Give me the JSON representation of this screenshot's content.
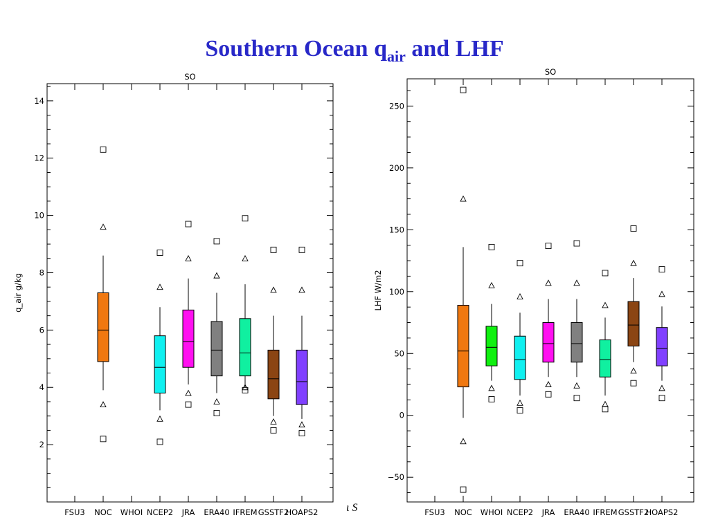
{
  "title": {
    "main": "Southern Ocean q",
    "sub": "air",
    "tail": " and LHF"
  },
  "stray_text": "ι S",
  "chart_data": [
    {
      "type": "box",
      "title": "SO",
      "xlabel": "",
      "ylabel": "q_air g/kg",
      "ylim": [
        0,
        14.6
      ],
      "yticks": [
        2,
        4,
        6,
        8,
        10,
        12,
        14
      ],
      "categories": [
        "FSU3",
        "NOC",
        "WHOI",
        "NCEP2",
        "JRA",
        "ERA40",
        "IFREM",
        "GSSTF2",
        "HOAPS2"
      ],
      "boxes": [
        {
          "category": "NOC",
          "color": "#f07810",
          "q1": 4.9,
          "median": 6.0,
          "q3": 7.3,
          "whisker_low": 3.9,
          "whisker_high": 8.6,
          "tri_low": 3.4,
          "tri_high": 9.6,
          "sq_low": 2.2,
          "sq_high": 12.3
        },
        {
          "category": "NCEP2",
          "color": "#10f0f0",
          "q1": 3.8,
          "median": 4.7,
          "q3": 5.8,
          "whisker_low": 3.2,
          "whisker_high": 6.8,
          "tri_low": 2.9,
          "tri_high": 7.5,
          "sq_low": 2.1,
          "sq_high": 8.7
        },
        {
          "category": "JRA",
          "color": "#ff10f0",
          "q1": 4.7,
          "median": 5.6,
          "q3": 6.7,
          "whisker_low": 4.1,
          "whisker_high": 7.8,
          "tri_low": 3.8,
          "tri_high": 8.5,
          "sq_low": 3.4,
          "sq_high": 9.7
        },
        {
          "category": "ERA40",
          "color": "#808080",
          "q1": 4.4,
          "median": 5.3,
          "q3": 6.3,
          "whisker_low": 3.8,
          "whisker_high": 7.3,
          "tri_low": 3.5,
          "tri_high": 7.9,
          "sq_low": 3.1,
          "sq_high": 9.1
        },
        {
          "category": "IFREM",
          "color": "#10f0a0",
          "q1": 4.4,
          "median": 5.2,
          "q3": 6.4,
          "whisker_low": 4.0,
          "whisker_high": 7.6,
          "tri_low": 4.0,
          "tri_high": 8.5,
          "sq_low": 3.9,
          "sq_high": 9.9
        },
        {
          "category": "GSSTF2",
          "color": "#8b4513",
          "q1": 3.6,
          "median": 4.3,
          "q3": 5.3,
          "whisker_low": 3.0,
          "whisker_high": 6.5,
          "tri_low": 2.8,
          "tri_high": 7.4,
          "sq_low": 2.5,
          "sq_high": 8.8
        },
        {
          "category": "HOAPS2",
          "color": "#8040ff",
          "q1": 3.4,
          "median": 4.2,
          "q3": 5.3,
          "whisker_low": 2.9,
          "whisker_high": 6.5,
          "tri_low": 2.7,
          "tri_high": 7.4,
          "sq_low": 2.4,
          "sq_high": 8.8
        }
      ]
    },
    {
      "type": "box",
      "title": "SO",
      "xlabel": "",
      "ylabel": "LHF W/m2",
      "ylim": [
        -70,
        272
      ],
      "yticks": [
        -50,
        0,
        50,
        100,
        150,
        200,
        250
      ],
      "categories": [
        "FSU3",
        "NOC",
        "WHOI",
        "NCEP2",
        "JRA",
        "ERA40",
        "IFREM",
        "GSSTF2",
        "HOAPS2"
      ],
      "boxes": [
        {
          "category": "NOC",
          "color": "#f07810",
          "q1": 23,
          "median": 52,
          "q3": 89,
          "whisker_low": -2,
          "whisker_high": 136,
          "tri_low": -21,
          "tri_high": 175,
          "sq_low": -60,
          "sq_high": 263
        },
        {
          "category": "WHOI",
          "color": "#10f010",
          "q1": 40,
          "median": 55,
          "q3": 72,
          "whisker_low": 28,
          "whisker_high": 90,
          "tri_low": 22,
          "tri_high": 105,
          "sq_low": 13,
          "sq_high": 136
        },
        {
          "category": "NCEP2",
          "color": "#10f0f0",
          "q1": 29,
          "median": 45,
          "q3": 64,
          "whisker_low": 16,
          "whisker_high": 83,
          "tri_low": 10,
          "tri_high": 96,
          "sq_low": 4,
          "sq_high": 123
        },
        {
          "category": "JRA",
          "color": "#ff10f0",
          "q1": 43,
          "median": 58,
          "q3": 75,
          "whisker_low": 31,
          "whisker_high": 94,
          "tri_low": 25,
          "tri_high": 107,
          "sq_low": 17,
          "sq_high": 137
        },
        {
          "category": "ERA40",
          "color": "#808080",
          "q1": 43,
          "median": 58,
          "q3": 75,
          "whisker_low": 31,
          "whisker_high": 94,
          "tri_low": 24,
          "tri_high": 107,
          "sq_low": 14,
          "sq_high": 139
        },
        {
          "category": "IFREM",
          "color": "#10f0a0",
          "q1": 31,
          "median": 45,
          "q3": 61,
          "whisker_low": 16,
          "whisker_high": 79,
          "tri_low": 9,
          "tri_high": 89,
          "sq_low": 5,
          "sq_high": 115
        },
        {
          "category": "GSSTF2",
          "color": "#8b4513",
          "q1": 56,
          "median": 73,
          "q3": 92,
          "whisker_low": 43,
          "whisker_high": 111,
          "tri_low": 36,
          "tri_high": 123,
          "sq_low": 26,
          "sq_high": 151
        },
        {
          "category": "HOAPS2",
          "color": "#8040ff",
          "q1": 40,
          "median": 54,
          "q3": 71,
          "whisker_low": 28,
          "whisker_high": 88,
          "tri_low": 22,
          "tri_high": 98,
          "sq_low": 14,
          "sq_high": 118
        }
      ]
    }
  ]
}
